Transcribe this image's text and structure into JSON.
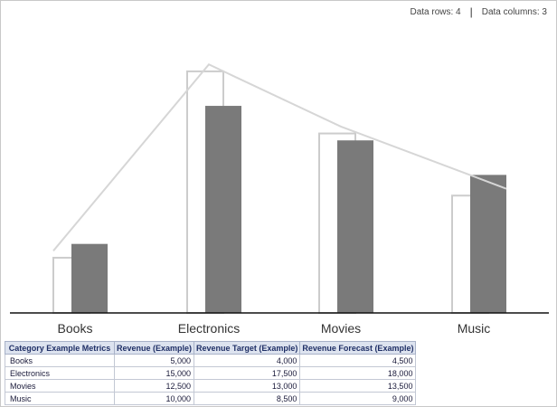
{
  "info": {
    "rows_label": "Data rows: 4",
    "separator": "|",
    "cols_label": "Data columns: 3"
  },
  "chart_data": {
    "type": "bar",
    "categories": [
      "Books",
      "Electronics",
      "Movies",
      "Music"
    ],
    "series": [
      {
        "name": "Revenue (Example)",
        "values": [
          5000,
          15000,
          12500,
          10000
        ],
        "color": "#7a7a7a",
        "style": "filled-bar"
      },
      {
        "name": "Revenue Target (Example)",
        "values": [
          4000,
          17500,
          13000,
          8500
        ],
        "color": "#cccccc",
        "style": "outline-bar"
      },
      {
        "name": "Revenue Forecast (Example)",
        "values": [
          4500,
          18000,
          13500,
          9000
        ],
        "color": "#d6d6d6",
        "style": "line"
      }
    ],
    "ylim": [
      0,
      19000
    ],
    "grid": false,
    "legend": "none"
  },
  "table": {
    "headers": [
      "Category Example Metrics",
      "Revenue (Example)",
      "Revenue Target (Example)",
      "Revenue Forecast (Example)"
    ],
    "rows": [
      [
        "Books",
        "5,000",
        "4,000",
        "4,500"
      ],
      [
        "Electronics",
        "15,000",
        "17,500",
        "18,000"
      ],
      [
        "Movies",
        "12,500",
        "13,000",
        "13,500"
      ],
      [
        "Music",
        "10,000",
        "8,500",
        "9,000"
      ]
    ]
  }
}
